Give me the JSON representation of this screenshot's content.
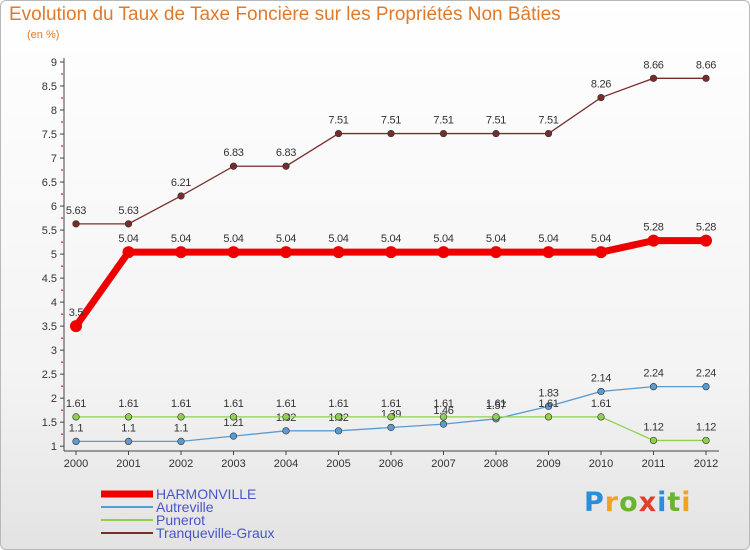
{
  "header": {
    "title": "Evolution du Taux de Taxe Foncière sur les Propriétés Non Bâties",
    "unit": "(en %)"
  },
  "logo": {
    "text": "Proxiti"
  },
  "colors": {
    "title": "#e07a2b",
    "axis": "#444444",
    "grid_dots": "#cc2222"
  },
  "chart_data": {
    "type": "line",
    "title": "Evolution du Taux de Taxe Foncière sur les Propriétés Non Bâties",
    "ylabel": "(en %)",
    "x": [
      "2000",
      "2001",
      "2002",
      "2003",
      "2004",
      "2005",
      "2006",
      "2007",
      "2008",
      "2009",
      "2010",
      "2011",
      "2012"
    ],
    "ylim": [
      0.9,
      9
    ],
    "yticks": [
      1,
      1.5,
      2,
      2.5,
      3,
      3.5,
      4,
      4.5,
      5,
      5.5,
      6,
      6.5,
      7,
      7.5,
      8,
      8.5,
      9
    ],
    "legend_position": "bottom-left",
    "series": [
      {
        "name": "HARMONVILLE",
        "color": "#ee0000",
        "width": 7,
        "values": [
          3.5,
          5.04,
          5.04,
          5.04,
          5.04,
          5.04,
          5.04,
          5.04,
          5.04,
          5.04,
          5.04,
          5.28,
          5.28
        ],
        "labels": [
          "3.5",
          "5.04",
          "5.04",
          "5.04",
          "5.04",
          "5.04",
          "5.04",
          "5.04",
          "5.04",
          "5.04",
          "5.04",
          "5.28",
          "5.28"
        ]
      },
      {
        "name": "Autreville",
        "color": "#5b9bd0",
        "width": 1,
        "values": [
          1.1,
          1.1,
          1.1,
          1.21,
          1.32,
          1.32,
          1.39,
          1.46,
          1.57,
          1.83,
          2.14,
          2.24,
          2.24
        ],
        "labels": [
          "1.1",
          "1.1",
          "1.1",
          "1.21",
          "1.32",
          "1.32",
          "1.39",
          "1.46",
          "1.57",
          "1.83",
          "2.14",
          "2.24",
          "2.24"
        ]
      },
      {
        "name": "Punerot",
        "color": "#8fd14f",
        "width": 1,
        "values": [
          1.61,
          1.61,
          1.61,
          1.61,
          1.61,
          1.61,
          1.61,
          1.61,
          1.61,
          1.61,
          1.61,
          1.12,
          1.12
        ],
        "labels": [
          "1.61",
          "1.61",
          "1.61",
          "1.61",
          "1.61",
          "1.61",
          "1.61",
          "1.61",
          "1.61",
          "1.61",
          "1.61",
          "1.12",
          "1.12"
        ]
      },
      {
        "name": "Tranqueville-Graux",
        "color": "#7a2c2c",
        "width": 1,
        "values": [
          5.63,
          5.63,
          6.21,
          6.83,
          6.83,
          7.51,
          7.51,
          7.51,
          7.51,
          7.51,
          8.26,
          8.66,
          8.66
        ],
        "labels": [
          "5.63",
          "5.63",
          "6.21",
          "6.83",
          "6.83",
          "7.51",
          "7.51",
          "7.51",
          "7.51",
          "7.51",
          "8.26",
          "8.66",
          "8.66"
        ]
      }
    ]
  }
}
